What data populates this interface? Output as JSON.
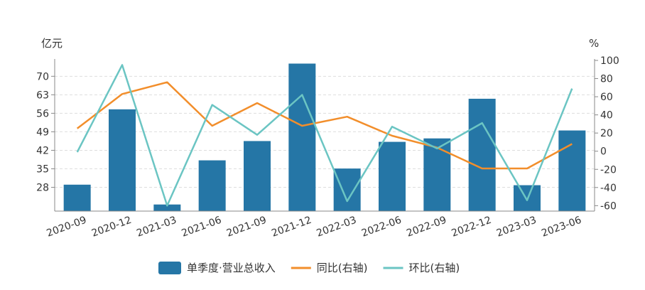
{
  "chart_data": {
    "type": "bar",
    "categories": [
      "2020-09",
      "2020-12",
      "2021-03",
      "2021-06",
      "2021-09",
      "2021-12",
      "2022-03",
      "2022-06",
      "2022-09",
      "2022-12",
      "2023-03",
      "2023-06"
    ],
    "left_axis": {
      "unit": "亿元",
      "ticks": [
        28,
        35,
        42,
        49,
        56,
        63,
        70
      ],
      "ylim": [
        19,
        76
      ]
    },
    "right_axis": {
      "unit": "%",
      "ticks": [
        100,
        80,
        60,
        40,
        20,
        0,
        -20,
        -40,
        -60
      ],
      "ylim": [
        -66,
        100
      ]
    },
    "series": [
      {
        "name": "单季度·营业总收入",
        "kind": "bar",
        "axis": "left",
        "color": "#2576A6",
        "values": [
          29.0,
          57.5,
          21.5,
          38.2,
          45.5,
          74.8,
          35.1,
          45.2,
          46.5,
          61.5,
          28.8,
          49.5
        ]
      },
      {
        "name": "同比(右轴)",
        "kind": "line",
        "axis": "right",
        "color": "#F28E2B",
        "values": [
          25,
          63,
          76,
          28,
          53,
          28,
          38,
          17,
          4,
          -19,
          -19,
          8
        ]
      },
      {
        "name": "环比(右轴)",
        "kind": "line",
        "axis": "right",
        "color": "#6BC5C3",
        "values": [
          -1,
          95,
          -60,
          51,
          18,
          62,
          -55,
          27,
          3,
          31,
          -54,
          69
        ]
      }
    ],
    "grid": true,
    "legend_position": "bottom"
  }
}
